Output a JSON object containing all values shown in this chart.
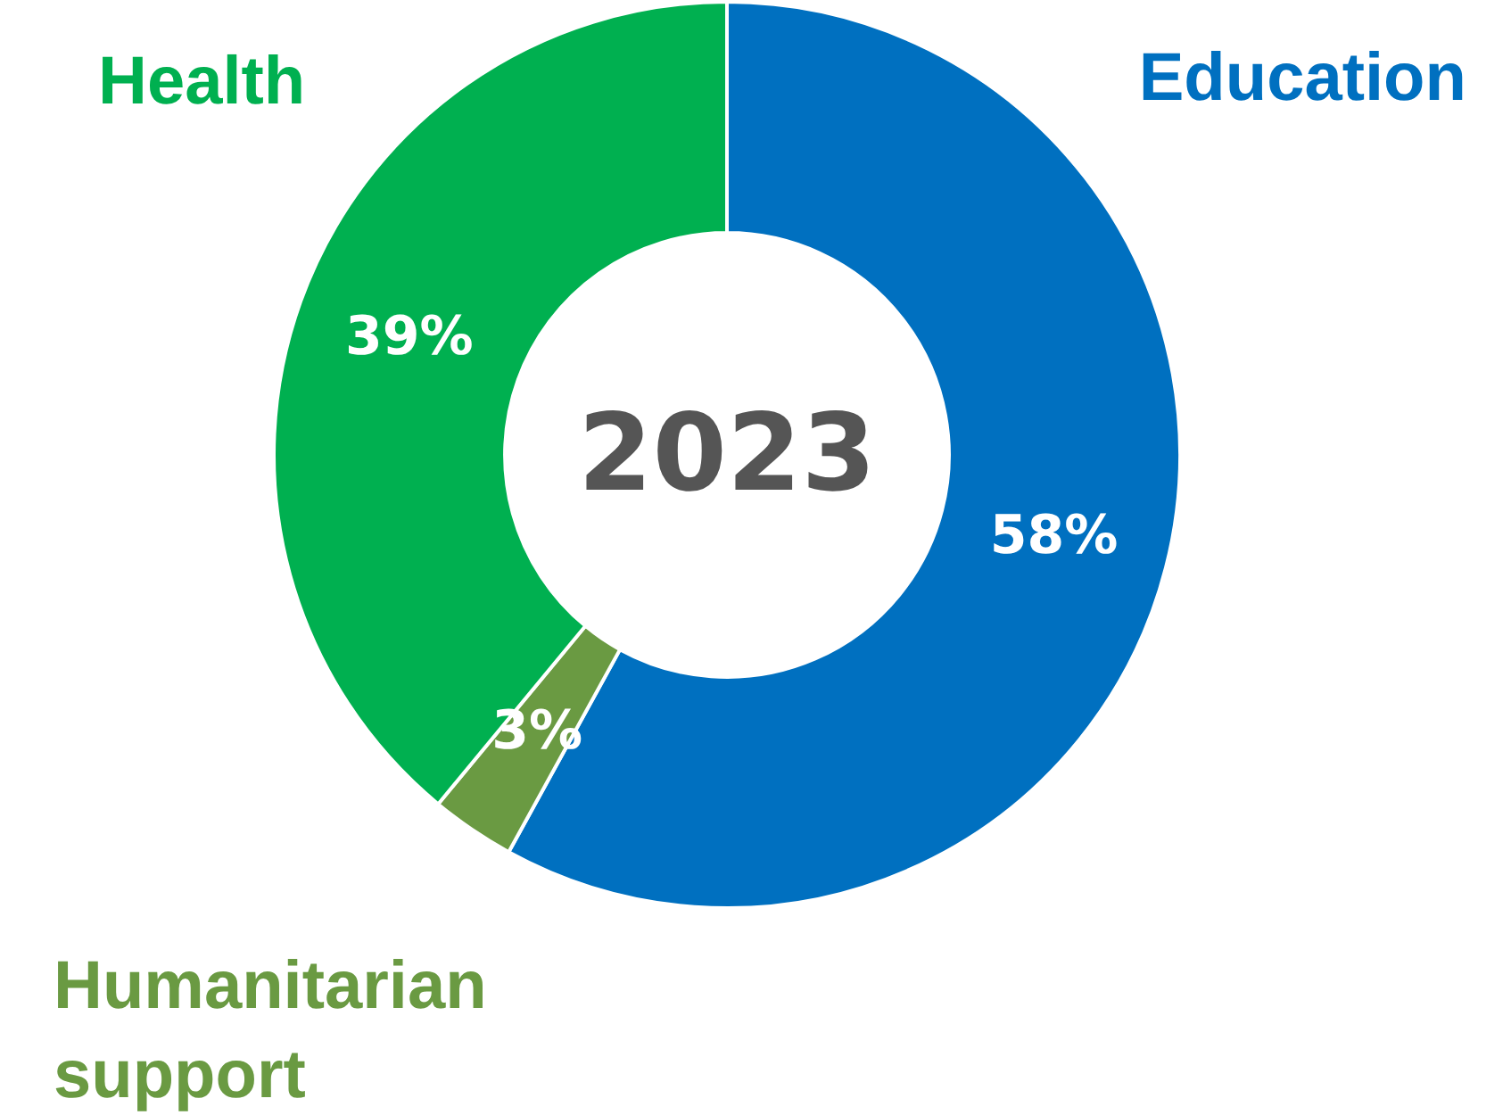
{
  "chart_data": {
    "type": "donut",
    "title": "2023",
    "categories": [
      "Education",
      "Humanitarian support",
      "Health"
    ],
    "values": [
      58,
      3,
      39
    ],
    "colors": [
      "#0070c0",
      "#6a9a42",
      "#00b050"
    ],
    "value_labels": [
      "58%",
      "3%",
      "39%"
    ]
  }
}
